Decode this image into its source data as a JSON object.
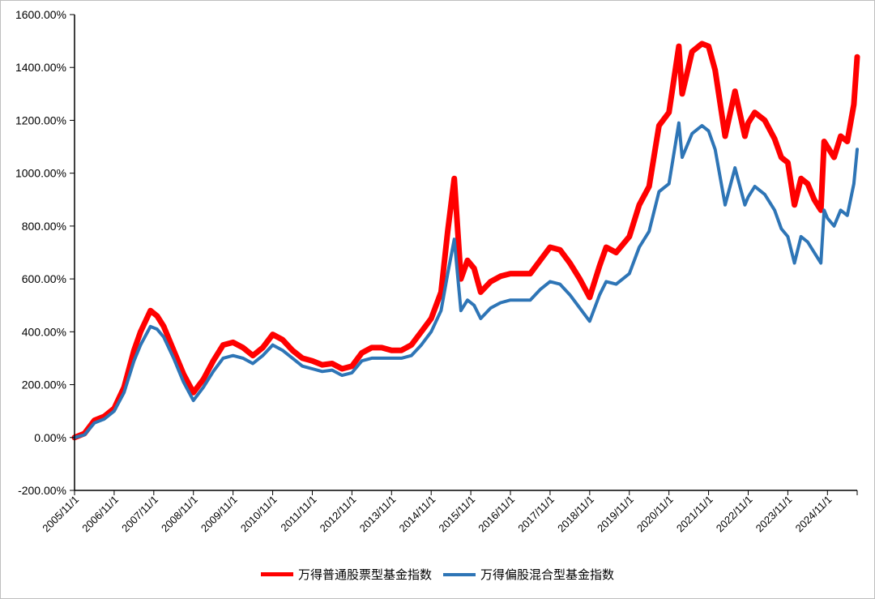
{
  "chart_data": {
    "type": "line",
    "title": "",
    "xlabel": "",
    "ylabel": "",
    "y_tick_labels": [
      "1600.00%",
      "1400.00%",
      "1200.00%",
      "1000.00%",
      "800.00%",
      "600.00%",
      "400.00%",
      "200.00%",
      "0.00%",
      "-200.00%"
    ],
    "y_ticks": [
      1600,
      1400,
      1200,
      1000,
      800,
      600,
      400,
      200,
      0,
      -200
    ],
    "ylim": [
      -200,
      1600
    ],
    "x_tick_labels": [
      "2005/11/1",
      "2006/11/1",
      "2007/11/1",
      "2008/11/1",
      "2009/11/1",
      "2010/11/1",
      "2011/11/1",
      "2012/11/1",
      "2013/11/1",
      "2014/11/1",
      "2015/11/1",
      "2016/11/1",
      "2017/11/1",
      "2018/11/1",
      "2019/11/1",
      "2020/11/1",
      "2021/11/1",
      "2022/11/1",
      "2023/11/1",
      "2024/11/1"
    ],
    "xlim": [
      "2005/11/1",
      "2025/08/1"
    ],
    "grid": false,
    "legend_position": "bottom",
    "colors": {
      "stock": "#ff0000",
      "mixed": "#2e75b6"
    },
    "series": [
      {
        "name": "万得普通股票型基金指数",
        "points": [
          [
            "2005/11/1",
            0
          ],
          [
            "2006/2/1",
            15
          ],
          [
            "2006/5/1",
            65
          ],
          [
            "2006/8/1",
            80
          ],
          [
            "2006/11/1",
            110
          ],
          [
            "2007/2/1",
            190
          ],
          [
            "2007/5/1",
            330
          ],
          [
            "2007/7/1",
            400
          ],
          [
            "2007/10/1",
            480
          ],
          [
            "2007/12/1",
            460
          ],
          [
            "2008/2/1",
            420
          ],
          [
            "2008/5/1",
            330
          ],
          [
            "2008/8/1",
            240
          ],
          [
            "2008/11/1",
            170
          ],
          [
            "2009/2/1",
            220
          ],
          [
            "2009/5/1",
            290
          ],
          [
            "2009/8/1",
            350
          ],
          [
            "2009/11/1",
            360
          ],
          [
            "2010/2/1",
            340
          ],
          [
            "2010/5/1",
            310
          ],
          [
            "2010/8/1",
            340
          ],
          [
            "2010/11/1",
            390
          ],
          [
            "2011/2/1",
            370
          ],
          [
            "2011/5/1",
            330
          ],
          [
            "2011/8/1",
            300
          ],
          [
            "2011/11/1",
            290
          ],
          [
            "2012/2/1",
            275
          ],
          [
            "2012/5/1",
            280
          ],
          [
            "2012/8/1",
            260
          ],
          [
            "2012/11/1",
            270
          ],
          [
            "2013/2/1",
            320
          ],
          [
            "2013/5/1",
            340
          ],
          [
            "2013/8/1",
            340
          ],
          [
            "2013/11/1",
            330
          ],
          [
            "2014/2/1",
            330
          ],
          [
            "2014/5/1",
            350
          ],
          [
            "2014/8/1",
            400
          ],
          [
            "2014/11/1",
            450
          ],
          [
            "2015/2/1",
            550
          ],
          [
            "2015/4/1",
            780
          ],
          [
            "2015/6/1",
            980
          ],
          [
            "2015/8/1",
            600
          ],
          [
            "2015/10/1",
            670
          ],
          [
            "2015/12/1",
            640
          ],
          [
            "2016/2/1",
            550
          ],
          [
            "2016/5/1",
            590
          ],
          [
            "2016/8/1",
            610
          ],
          [
            "2016/11/1",
            620
          ],
          [
            "2017/2/1",
            620
          ],
          [
            "2017/5/1",
            620
          ],
          [
            "2017/8/1",
            670
          ],
          [
            "2017/11/1",
            720
          ],
          [
            "2018/2/1",
            710
          ],
          [
            "2018/5/1",
            660
          ],
          [
            "2018/8/1",
            600
          ],
          [
            "2018/11/1",
            530
          ],
          [
            "2019/2/1",
            650
          ],
          [
            "2019/4/1",
            720
          ],
          [
            "2019/7/1",
            700
          ],
          [
            "2019/11/1",
            760
          ],
          [
            "2020/2/1",
            880
          ],
          [
            "2020/5/1",
            950
          ],
          [
            "2020/8/1",
            1180
          ],
          [
            "2020/11/1",
            1230
          ],
          [
            "2021/2/1",
            1480
          ],
          [
            "2021/3/1",
            1300
          ],
          [
            "2021/6/1",
            1460
          ],
          [
            "2021/9/1",
            1490
          ],
          [
            "2021/11/1",
            1480
          ],
          [
            "2022/1/1",
            1390
          ],
          [
            "2022/4/1",
            1140
          ],
          [
            "2022/7/1",
            1310
          ],
          [
            "2022/10/1",
            1140
          ],
          [
            "2022/11/1",
            1190
          ],
          [
            "2023/1/1",
            1230
          ],
          [
            "2023/4/1",
            1200
          ],
          [
            "2023/7/1",
            1130
          ],
          [
            "2023/9/1",
            1060
          ],
          [
            "2023/11/1",
            1040
          ],
          [
            "2024/1/1",
            880
          ],
          [
            "2024/3/1",
            980
          ],
          [
            "2024/5/1",
            960
          ],
          [
            "2024/7/1",
            900
          ],
          [
            "2024/9/1",
            860
          ],
          [
            "2024/10/1",
            1120
          ],
          [
            "2024/11/1",
            1100
          ],
          [
            "2025/1/1",
            1060
          ],
          [
            "2025/3/1",
            1140
          ],
          [
            "2025/5/1",
            1120
          ],
          [
            "2025/7/1",
            1260
          ],
          [
            "2025/8/1",
            1440
          ]
        ]
      },
      {
        "name": "万得偏股混合型基金指数",
        "points": [
          [
            "2005/11/1",
            0
          ],
          [
            "2006/2/1",
            10
          ],
          [
            "2006/5/1",
            55
          ],
          [
            "2006/8/1",
            70
          ],
          [
            "2006/11/1",
            100
          ],
          [
            "2007/2/1",
            170
          ],
          [
            "2007/5/1",
            290
          ],
          [
            "2007/7/1",
            350
          ],
          [
            "2007/10/1",
            420
          ],
          [
            "2007/12/1",
            410
          ],
          [
            "2008/2/1",
            380
          ],
          [
            "2008/5/1",
            300
          ],
          [
            "2008/8/1",
            210
          ],
          [
            "2008/11/1",
            140
          ],
          [
            "2009/2/1",
            190
          ],
          [
            "2009/5/1",
            250
          ],
          [
            "2009/8/1",
            300
          ],
          [
            "2009/11/1",
            310
          ],
          [
            "2010/2/1",
            300
          ],
          [
            "2010/5/1",
            280
          ],
          [
            "2010/8/1",
            310
          ],
          [
            "2010/11/1",
            350
          ],
          [
            "2011/2/1",
            330
          ],
          [
            "2011/5/1",
            300
          ],
          [
            "2011/8/1",
            270
          ],
          [
            "2011/11/1",
            260
          ],
          [
            "2012/2/1",
            250
          ],
          [
            "2012/5/1",
            255
          ],
          [
            "2012/8/1",
            235
          ],
          [
            "2012/11/1",
            245
          ],
          [
            "2013/2/1",
            290
          ],
          [
            "2013/5/1",
            300
          ],
          [
            "2013/8/1",
            300
          ],
          [
            "2013/11/1",
            300
          ],
          [
            "2014/2/1",
            300
          ],
          [
            "2014/5/1",
            310
          ],
          [
            "2014/8/1",
            350
          ],
          [
            "2014/11/1",
            400
          ],
          [
            "2015/2/1",
            480
          ],
          [
            "2015/4/1",
            620
          ],
          [
            "2015/6/1",
            750
          ],
          [
            "2015/8/1",
            480
          ],
          [
            "2015/10/1",
            520
          ],
          [
            "2015/12/1",
            500
          ],
          [
            "2016/2/1",
            450
          ],
          [
            "2016/5/1",
            490
          ],
          [
            "2016/8/1",
            510
          ],
          [
            "2016/11/1",
            520
          ],
          [
            "2017/2/1",
            520
          ],
          [
            "2017/5/1",
            520
          ],
          [
            "2017/8/1",
            560
          ],
          [
            "2017/11/1",
            590
          ],
          [
            "2018/2/1",
            580
          ],
          [
            "2018/5/1",
            540
          ],
          [
            "2018/8/1",
            490
          ],
          [
            "2018/11/1",
            440
          ],
          [
            "2019/2/1",
            540
          ],
          [
            "2019/4/1",
            590
          ],
          [
            "2019/7/1",
            580
          ],
          [
            "2019/11/1",
            620
          ],
          [
            "2020/2/1",
            720
          ],
          [
            "2020/5/1",
            780
          ],
          [
            "2020/8/1",
            930
          ],
          [
            "2020/11/1",
            960
          ],
          [
            "2021/2/1",
            1190
          ],
          [
            "2021/3/1",
            1060
          ],
          [
            "2021/6/1",
            1150
          ],
          [
            "2021/9/1",
            1180
          ],
          [
            "2021/11/1",
            1160
          ],
          [
            "2022/1/1",
            1090
          ],
          [
            "2022/4/1",
            880
          ],
          [
            "2022/7/1",
            1020
          ],
          [
            "2022/10/1",
            880
          ],
          [
            "2022/11/1",
            910
          ],
          [
            "2023/1/1",
            950
          ],
          [
            "2023/4/1",
            920
          ],
          [
            "2023/7/1",
            860
          ],
          [
            "2023/9/1",
            790
          ],
          [
            "2023/11/1",
            760
          ],
          [
            "2024/1/1",
            660
          ],
          [
            "2024/3/1",
            760
          ],
          [
            "2024/5/1",
            740
          ],
          [
            "2024/7/1",
            700
          ],
          [
            "2024/9/1",
            660
          ],
          [
            "2024/10/1",
            860
          ],
          [
            "2024/11/1",
            830
          ],
          [
            "2025/1/1",
            800
          ],
          [
            "2025/3/1",
            860
          ],
          [
            "2025/5/1",
            840
          ],
          [
            "2025/7/1",
            960
          ],
          [
            "2025/8/1",
            1090
          ]
        ]
      }
    ]
  }
}
